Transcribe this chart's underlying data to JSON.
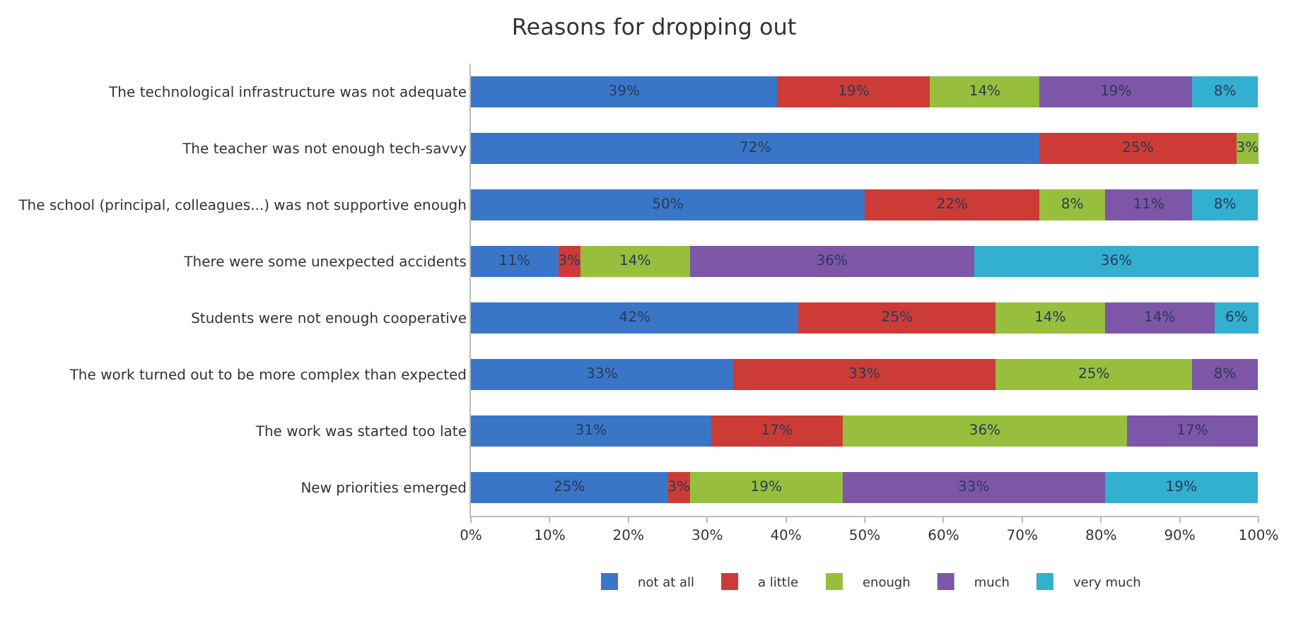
{
  "chart_data": {
    "type": "bar",
    "title": "Reasons for dropping out",
    "orientation": "horizontal",
    "stacked": true,
    "categories": [
      "The technological infrastructure was not adequate",
      "The teacher was not enough tech-savvy",
      "The school (principal, colleagues...) was not supportive enough",
      "There were some unexpected accidents",
      "Students were not enough cooperative",
      "The work turned out to be more complex than expected",
      "The work was started too late",
      "New priorities emerged"
    ],
    "series": [
      {
        "name": "not at all",
        "color": "#3a76c8",
        "values": [
          38.9,
          72.2,
          50.0,
          11.1,
          41.6,
          33.3,
          30.5,
          25.0
        ],
        "value_labels": [
          "39%",
          "72%",
          "50%",
          "11%",
          "42%",
          "33%",
          "31%",
          "25%"
        ]
      },
      {
        "name": "a little",
        "color": "#cc3b36",
        "values": [
          19.4,
          25.0,
          22.2,
          2.8,
          25.0,
          33.3,
          16.7,
          2.8
        ],
        "value_labels": [
          "19%",
          "25%",
          "22%",
          "3%",
          "25%",
          "33%",
          "17%",
          "3%"
        ]
      },
      {
        "name": "enough",
        "color": "#97bf3d",
        "values": [
          13.9,
          2.8,
          8.3,
          13.9,
          13.9,
          25.0,
          36.1,
          19.4
        ],
        "value_labels": [
          "14%",
          "3%",
          "8%",
          "14%",
          "14%",
          "25%",
          "36%",
          "19%"
        ]
      },
      {
        "name": "much",
        "color": "#7d56a8",
        "values": [
          19.4,
          null,
          11.1,
          36.1,
          13.9,
          8.3,
          16.6,
          33.3
        ],
        "value_labels": [
          "19%",
          null,
          "11%",
          "36%",
          "14%",
          "8%",
          "17%",
          "33%"
        ]
      },
      {
        "name": "very much",
        "color": "#33afd0",
        "values": [
          8.3,
          null,
          8.3,
          36.1,
          5.6,
          null,
          null,
          19.4
        ],
        "value_labels": [
          "8%",
          null,
          "8%",
          "36%",
          "6%",
          null,
          null,
          "19%"
        ]
      }
    ],
    "xlim": [
      0,
      100
    ],
    "xticks": [
      {
        "value": 0,
        "label": "0%"
      },
      {
        "value": 10,
        "label": "10%"
      },
      {
        "value": 20,
        "label": "20%"
      },
      {
        "value": 30,
        "label": "30%"
      },
      {
        "value": 40,
        "label": "40%"
      },
      {
        "value": 50,
        "label": "50%"
      },
      {
        "value": 60,
        "label": "60%"
      },
      {
        "value": 70,
        "label": "70%"
      },
      {
        "value": 80,
        "label": "80%"
      },
      {
        "value": 90,
        "label": "90%"
      },
      {
        "value": 100,
        "label": "100%"
      }
    ],
    "grid": false,
    "legend": "bottom"
  }
}
